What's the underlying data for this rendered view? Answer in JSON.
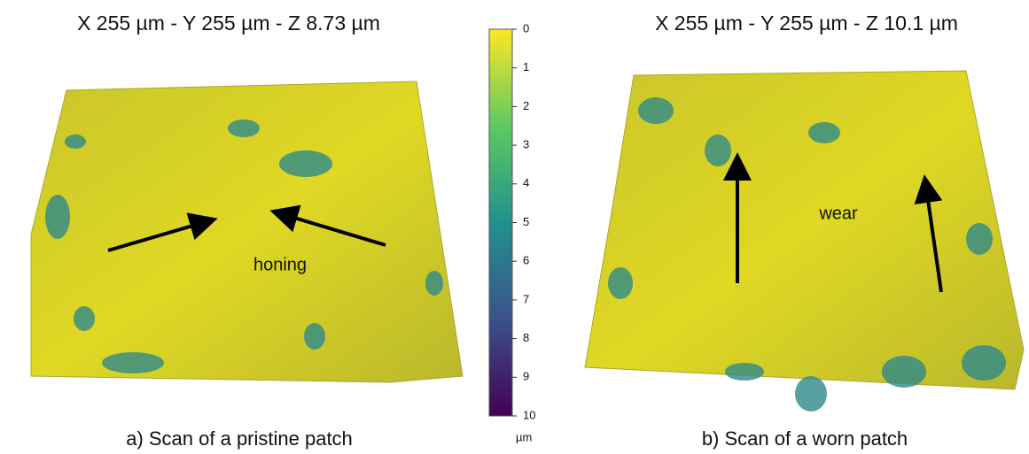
{
  "panels": [
    {
      "title": "X 255 µm - Y 255 µm - Z 8.73 µm",
      "annotation": "honing",
      "caption": "a) Scan of a pristine patch"
    },
    {
      "title": "X 255 µm - Y 255 µm - Z 10.1 µm",
      "annotation": "wear",
      "caption": "b) Scan of a worn patch"
    }
  ],
  "colorbar": {
    "range": [
      0,
      10
    ],
    "ticks": [
      0,
      1,
      2,
      3,
      4,
      5,
      6,
      7,
      8,
      9,
      10
    ],
    "unit": "µm"
  }
}
